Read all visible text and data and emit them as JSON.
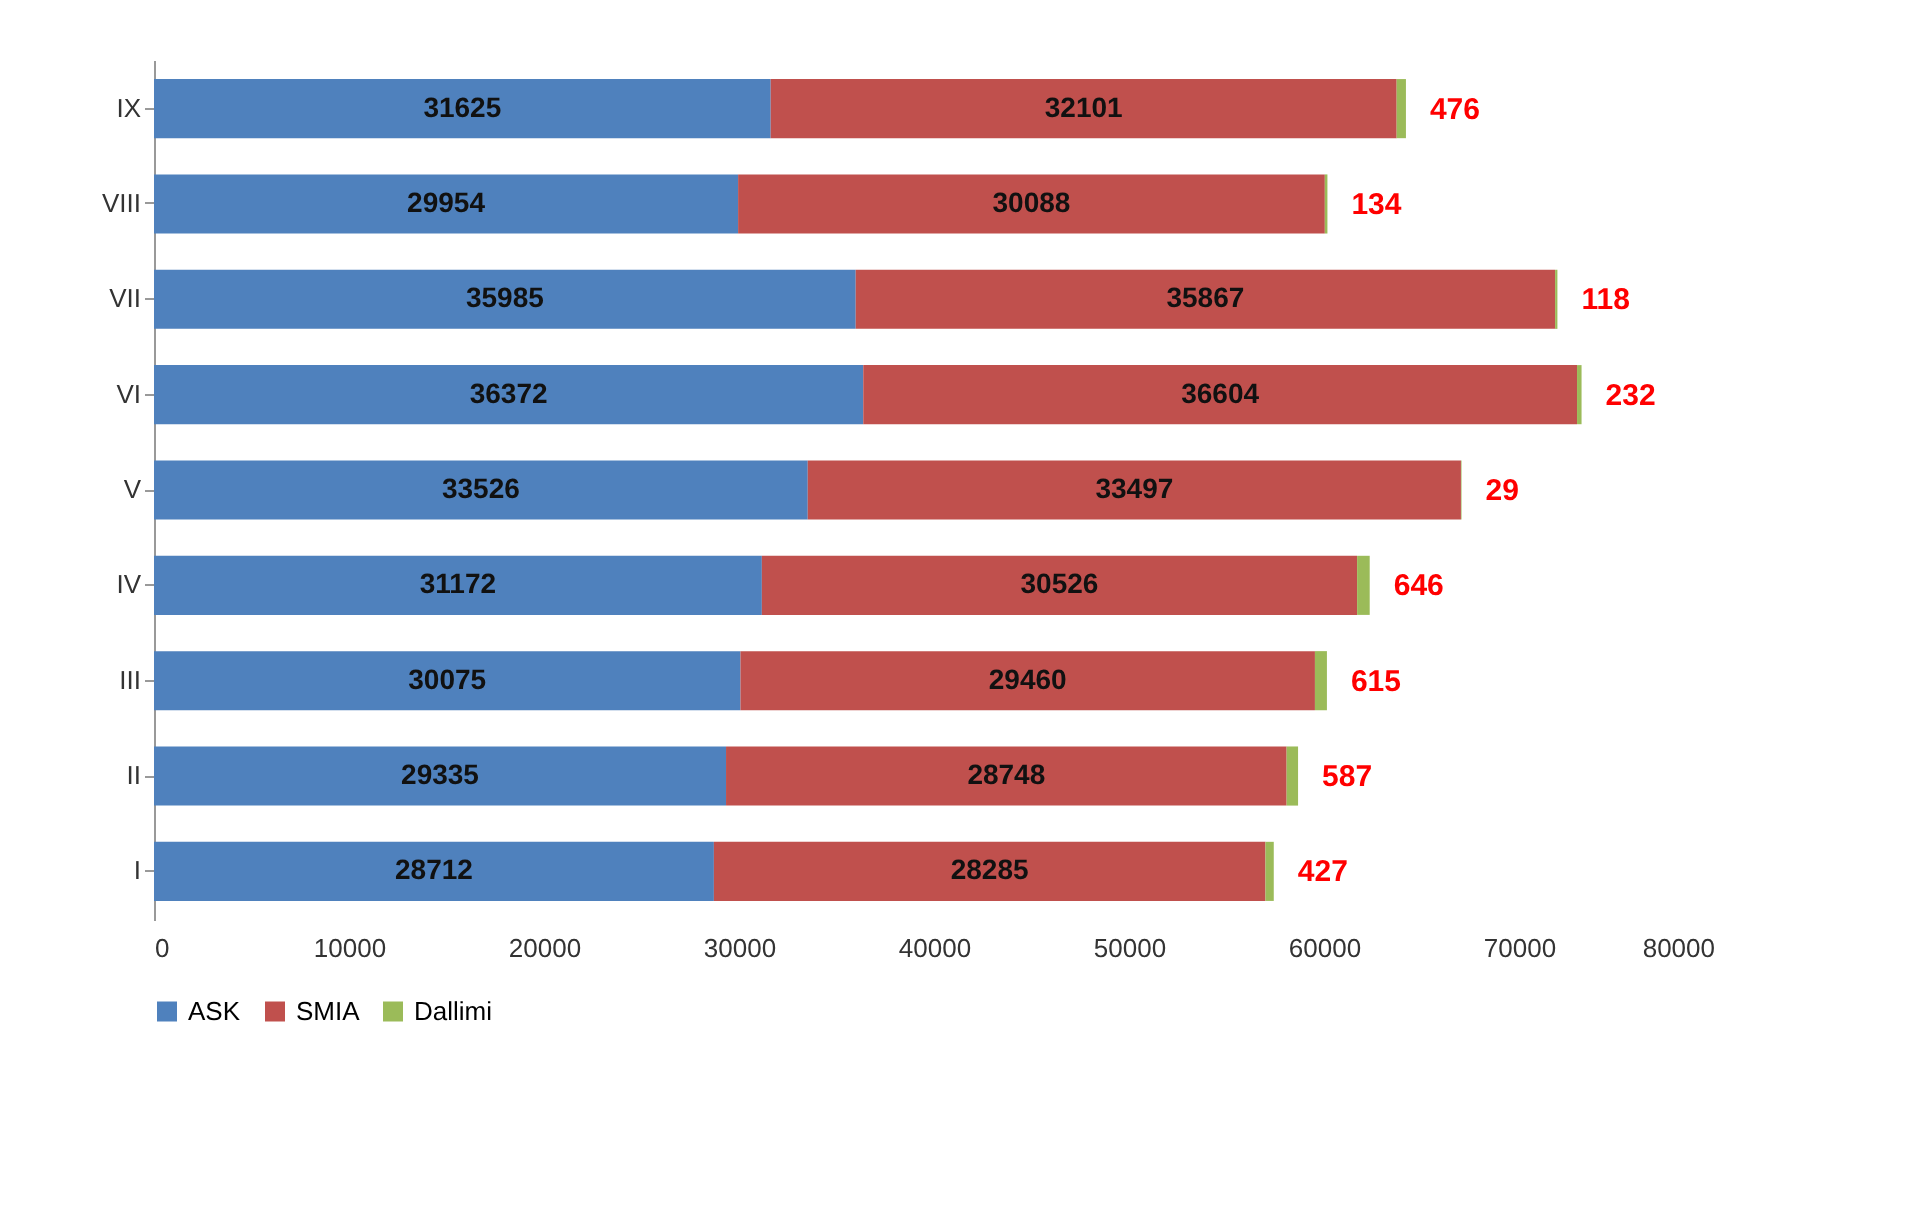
{
  "chart_data": {
    "type": "bar",
    "orientation": "horizontal",
    "stacked": true,
    "data_labels": true,
    "legend": "bottom",
    "grid": false,
    "categories": [
      "IX",
      "VIII",
      "VII",
      "VI",
      "V",
      "IV",
      "III",
      "II",
      "I"
    ],
    "xlim": [
      0,
      80000
    ],
    "xticks": [
      0,
      10000,
      20000,
      30000,
      40000,
      50000,
      60000,
      70000,
      80000
    ],
    "series": [
      {
        "name": "ASK",
        "color": "#4f81bd",
        "values": [
          31625,
          29954,
          35985,
          36372,
          33526,
          31172,
          30075,
          29335,
          28712
        ]
      },
      {
        "name": "SMIA",
        "color": "#c0504d",
        "values": [
          32101,
          30088,
          35867,
          36604,
          33497,
          30526,
          29460,
          28748,
          28285
        ]
      },
      {
        "name": "Dallimi",
        "color": "#9bbb59",
        "values": [
          476,
          134,
          118,
          232,
          29,
          646,
          615,
          587,
          427
        ]
      }
    ]
  }
}
